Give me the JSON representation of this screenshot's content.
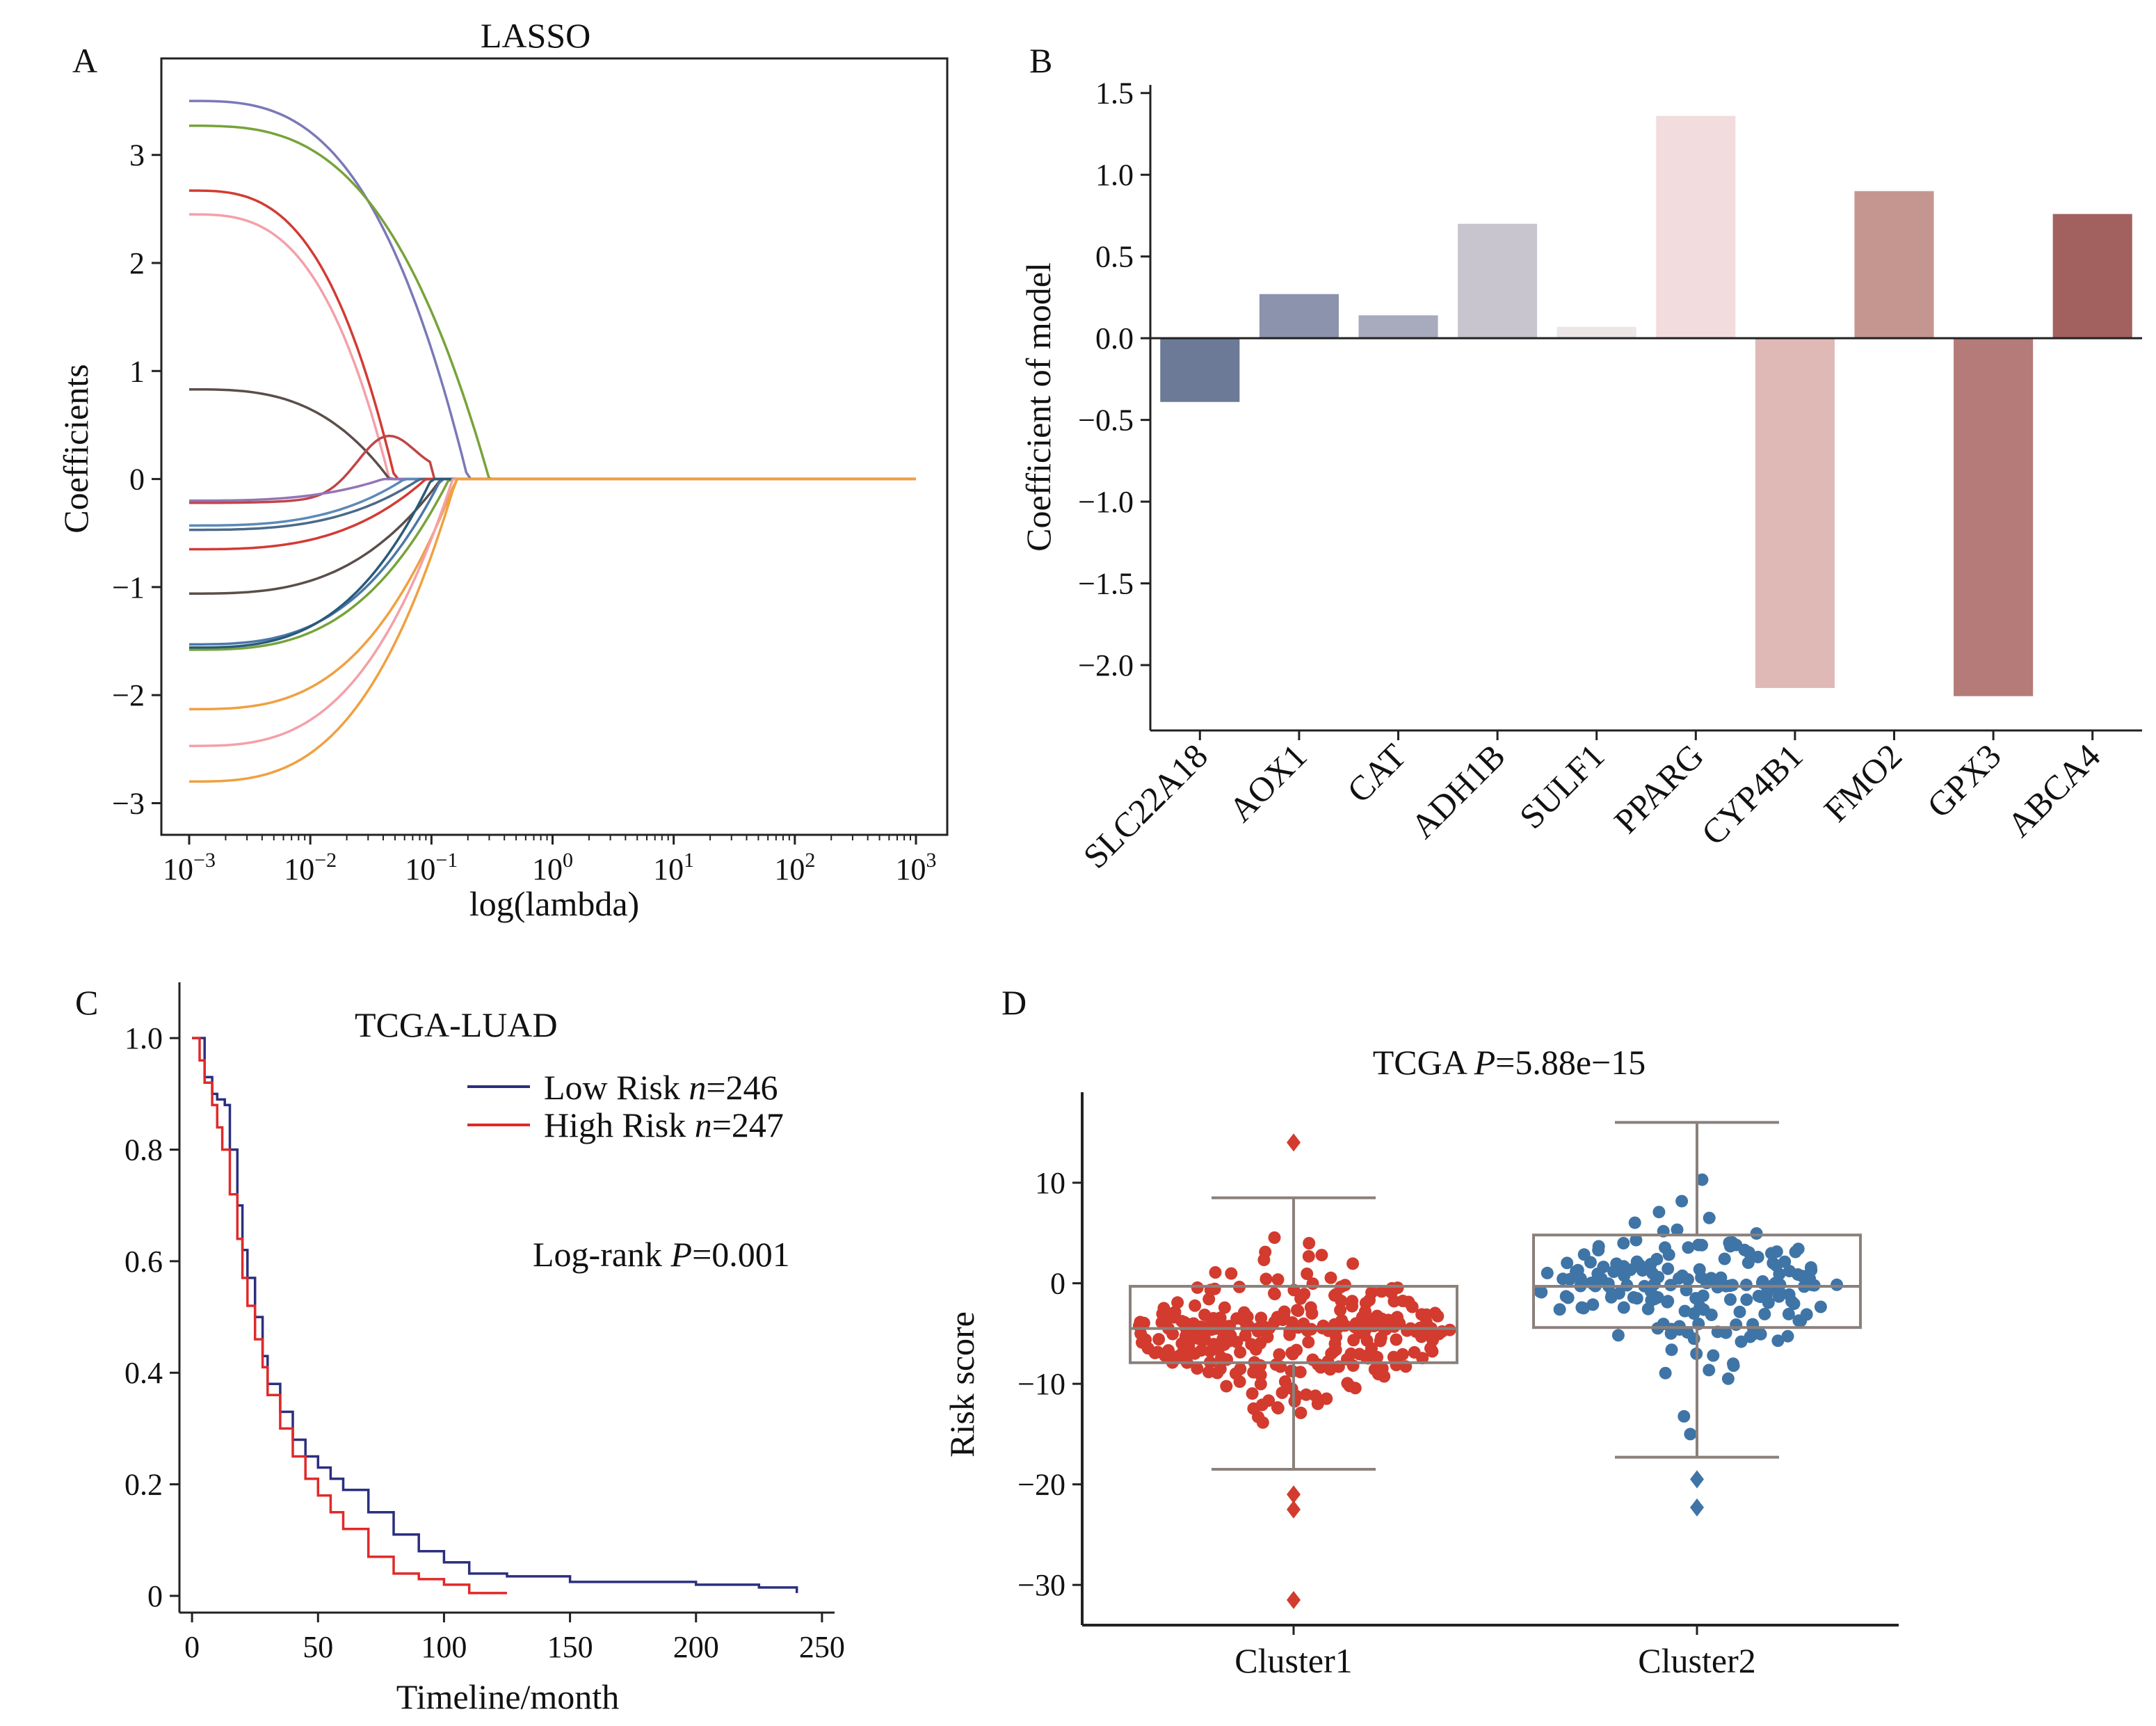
{
  "panels": {
    "A": {
      "letter": "A",
      "chart_data": {
        "type": "line",
        "title": "LASSO",
        "xlabel": "log(lambda)",
        "ylabel": "Coefficients",
        "xscale": "log",
        "xlim": [
          0.001,
          1000
        ],
        "ylim": [
          -3.1,
          3.7
        ],
        "xticks": [
          0.001,
          0.01,
          0.1,
          1,
          10,
          100,
          1000
        ],
        "xtick_labels": [
          {
            "base": "10",
            "exp": "−3"
          },
          {
            "base": "10",
            "exp": "−2"
          },
          {
            "base": "10",
            "exp": "−1"
          },
          {
            "base": "10",
            "exp": "0"
          },
          {
            "base": "10",
            "exp": "1"
          },
          {
            "base": "10",
            "exp": "2"
          },
          {
            "base": "10",
            "exp": "3"
          }
        ],
        "yticks": [
          -3,
          -2,
          -1,
          0,
          1,
          2,
          3
        ],
        "ytick_labels": [
          "−3",
          "−2",
          "−1",
          "0",
          "1",
          "2",
          "3"
        ],
        "series": [
          {
            "color": "#7b78b8",
            "start": 3.5,
            "zero_at": 0.2
          },
          {
            "color": "#77a33a",
            "start": 3.27,
            "zero_at": 0.3
          },
          {
            "color": "#d23b33",
            "start": 2.67,
            "zero_at": 0.05
          },
          {
            "color": "#f4a0a8",
            "start": 2.45,
            "zero_at": 0.045
          },
          {
            "color": "#5b4e4a",
            "start": 0.83,
            "zero_at": 0.045
          },
          {
            "color": "#c04545",
            "start": -0.22,
            "zero_at": 0.1,
            "hump_at": 0.045,
            "hump": 0.4
          },
          {
            "color": "#9474b8",
            "start": -0.2,
            "zero_at": 0.04
          },
          {
            "color": "#5b8ab8",
            "start": -0.43,
            "zero_at": 0.06
          },
          {
            "color": "#4a6a8a",
            "start": -0.47,
            "zero_at": 0.08
          },
          {
            "color": "#d23b33",
            "start": -0.65,
            "zero_at": 0.09
          },
          {
            "color": "#5b4e4a",
            "start": -1.06,
            "zero_at": 0.12
          },
          {
            "color": "#4a78a8",
            "start": -1.53,
            "zero_at": 0.12
          },
          {
            "color": "#77a33a",
            "start": -1.58,
            "zero_at": 0.14
          },
          {
            "color": "#2a5a7a",
            "start": -1.56,
            "zero_at": 0.1
          },
          {
            "color": "#f0a040",
            "start": -2.13,
            "zero_at": 0.16
          },
          {
            "color": "#f4a0a8",
            "start": -2.47,
            "zero_at": 0.15
          },
          {
            "color": "#f0a040",
            "start": -2.8,
            "zero_at": 0.16
          }
        ]
      }
    },
    "B": {
      "letter": "B",
      "chart_data": {
        "type": "bar",
        "title": "",
        "xlabel": "",
        "ylabel": "Coefficient of model",
        "ylim": [
          -2.4,
          1.55
        ],
        "yticks": [
          -2.0,
          -1.5,
          -1.0,
          -0.5,
          0.0,
          0.5,
          1.0,
          1.5
        ],
        "ytick_labels": [
          "−2.0",
          "−1.5",
          "−1.0",
          "−0.5",
          "0.0",
          "0.5",
          "1.0",
          "1.5"
        ],
        "categories": [
          "SLC22A18",
          "AOX1",
          "CAT",
          "ADH1B",
          "SULF1",
          "PPARG",
          "CYP4B1",
          "FMO2",
          "GPX3",
          "ABCA4"
        ],
        "values": [
          -0.39,
          0.27,
          0.14,
          0.7,
          0.07,
          1.36,
          -2.14,
          0.9,
          -2.19,
          0.76
        ],
        "colors": [
          "#6c7a97",
          "#8c93ad",
          "#a8abbd",
          "#c9c5ce",
          "#ece6e6",
          "#f2dcdd",
          "#dfb9b6",
          "#c59690",
          "#b47b78",
          "#a2605f"
        ]
      }
    },
    "C": {
      "letter": "C",
      "chart_data": {
        "type": "line",
        "title": "TCGA-LUAD",
        "xlabel": "Timeline/month",
        "ylabel": "",
        "xlim": [
          -5,
          255
        ],
        "ylim": [
          -0.03,
          1.1
        ],
        "xticks": [
          0,
          50,
          100,
          150,
          200,
          250
        ],
        "xtick_labels": [
          "0",
          "50",
          "100",
          "150",
          "200",
          "250"
        ],
        "yticks": [
          0,
          0.2,
          0.4,
          0.6,
          0.8,
          1.0
        ],
        "ytick_labels": [
          "0",
          "0.2",
          "0.4",
          "0.6",
          "0.8",
          "1.0"
        ],
        "annotation": {
          "prefix": "Log-rank ",
          "italic": "P",
          "suffix": "=0.001"
        },
        "series": [
          {
            "name": "Low Risk",
            "n_label": "n",
            "n_value": "=246",
            "color": "#2b2f7f",
            "x": [
              0,
              5,
              8,
              10,
              13,
              15,
              18,
              20,
              22,
              25,
              28,
              30,
              35,
              40,
              45,
              50,
              55,
              60,
              70,
              80,
              90,
              100,
              110,
              125,
              150,
              175,
              200,
              225,
              240
            ],
            "y": [
              1.0,
              0.93,
              0.9,
              0.89,
              0.88,
              0.8,
              0.7,
              0.62,
              0.57,
              0.5,
              0.43,
              0.38,
              0.33,
              0.28,
              0.25,
              0.23,
              0.21,
              0.19,
              0.15,
              0.11,
              0.08,
              0.06,
              0.04,
              0.035,
              0.025,
              0.025,
              0.02,
              0.015,
              0.005
            ]
          },
          {
            "name": "High Risk",
            "n_label": "n",
            "n_value": "=247",
            "color": "#e02a2a",
            "x": [
              0,
              3,
              5,
              8,
              10,
              12,
              15,
              18,
              20,
              22,
              25,
              28,
              30,
              35,
              40,
              45,
              50,
              55,
              60,
              70,
              80,
              90,
              100,
              110,
              125
            ],
            "y": [
              1.0,
              0.96,
              0.92,
              0.88,
              0.84,
              0.8,
              0.72,
              0.64,
              0.57,
              0.52,
              0.46,
              0.41,
              0.36,
              0.3,
              0.25,
              0.21,
              0.18,
              0.15,
              0.12,
              0.07,
              0.04,
              0.03,
              0.02,
              0.005,
              0.005
            ]
          }
        ]
      }
    },
    "D": {
      "letter": "D",
      "chart_data": {
        "type": "box",
        "title": {
          "prefix": "TCGA ",
          "italic": "P",
          "suffix": "=5.88e−15"
        },
        "xlabel": "",
        "ylabel": "Risk score",
        "ylim": [
          -34,
          19
        ],
        "yticks": [
          -30,
          -20,
          -10,
          0,
          10
        ],
        "ytick_labels": [
          "−30",
          "−20",
          "−10",
          "0",
          "10"
        ],
        "categories": [
          "Cluster1",
          "Cluster2"
        ],
        "groups": [
          {
            "name": "Cluster1",
            "color": "#d23b2e",
            "whisker_low": -18.5,
            "q1": -7.9,
            "median": -4.5,
            "q3": -0.3,
            "whisker_high": 8.5,
            "outliers": [
              14.0,
              -21.0,
              -22.5,
              -31.5
            ],
            "n_points": 300,
            "seed": 7
          },
          {
            "name": "Cluster2",
            "color": "#3f74a6",
            "whisker_low": -17.3,
            "q1": -4.4,
            "median": -0.3,
            "q3": 4.8,
            "whisker_high": 16.0,
            "outliers": [
              -19.5,
              -22.3
            ],
            "n_points": 180,
            "seed": 11
          }
        ]
      }
    }
  }
}
